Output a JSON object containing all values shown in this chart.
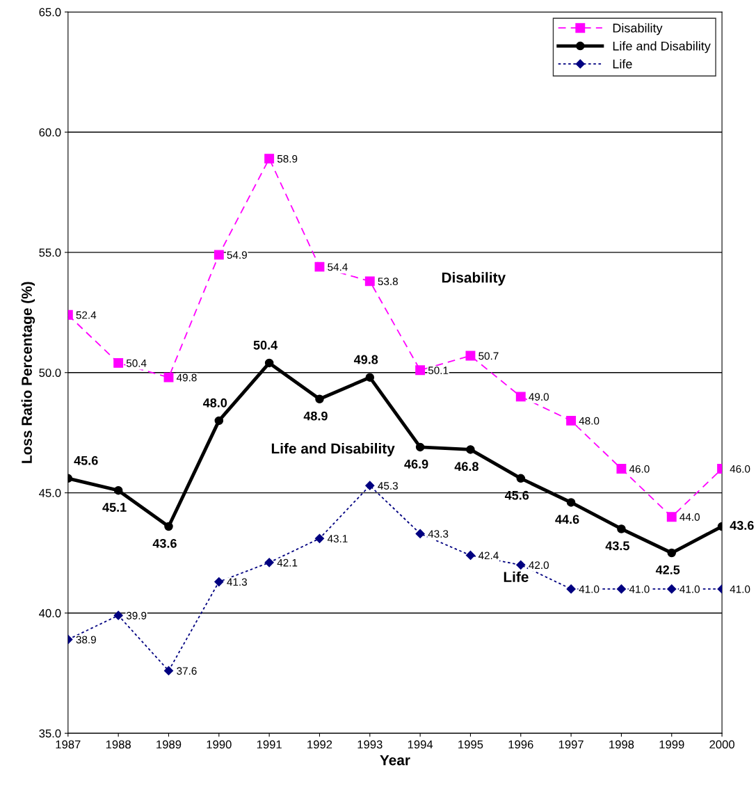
{
  "chart_data": {
    "type": "line",
    "xlabel": "Year",
    "ylabel": "Loss Ratio Percentage (%)",
    "categories": [
      "1987",
      "1988",
      "1989",
      "1990",
      "1991",
      "1992",
      "1993",
      "1994",
      "1995",
      "1996",
      "1997",
      "1998",
      "1999",
      "2000"
    ],
    "ylim": [
      35,
      65
    ],
    "yticks": [
      {
        "value": 35,
        "label": "35.0"
      },
      {
        "value": 40,
        "label": "40.0"
      },
      {
        "value": 45,
        "label": "45.0"
      },
      {
        "value": 50,
        "label": "50.0"
      },
      {
        "value": 55,
        "label": "55.0"
      },
      {
        "value": 60,
        "label": "60.0"
      },
      {
        "value": 65,
        "label": "65.0"
      }
    ],
    "grid": "y",
    "legend": "top right",
    "series": [
      {
        "name": "Disability",
        "color": "#ff00ff",
        "marker": "square",
        "line_style": "dashed",
        "values": [
          52.4,
          50.4,
          49.8,
          54.9,
          58.9,
          54.4,
          53.8,
          50.1,
          50.7,
          49.0,
          48.0,
          46.0,
          44.0,
          46.0
        ],
        "value_labels": [
          "52.4",
          "50.4",
          "49.8",
          "54.9",
          "58.9",
          "54.4",
          "53.8",
          "50.1",
          "50.7",
          "49.0",
          "48.0",
          "46.0",
          "44.0",
          "46.0"
        ]
      },
      {
        "name": "Life and Disability",
        "color": "#000000",
        "marker": "circle",
        "line_style": "solid",
        "values": [
          45.6,
          45.1,
          43.6,
          48.0,
          50.4,
          48.9,
          49.8,
          46.9,
          46.8,
          45.6,
          44.6,
          43.5,
          42.5,
          43.6
        ],
        "value_labels": [
          "45.6",
          "45.1",
          "43.6",
          "48.0",
          "50.4",
          "48.9",
          "49.8",
          "46.9",
          "46.8",
          "45.6",
          "44.6",
          "43.5",
          "42.5",
          "43.6"
        ]
      },
      {
        "name": "Life",
        "color": "#000080",
        "marker": "diamond",
        "line_style": "dotted",
        "values": [
          38.9,
          39.9,
          37.6,
          41.3,
          42.1,
          43.1,
          45.3,
          43.3,
          42.4,
          42.0,
          41.0,
          41.0,
          41.0,
          41.0
        ],
        "value_labels": [
          "38.9",
          "39.9",
          "37.6",
          "41.3",
          "42.1",
          "43.1",
          "45.3",
          "43.3",
          "42.4",
          "42.0",
          "41.0",
          "41.0",
          "41.0",
          "41.0"
        ]
      }
    ],
    "annotations": [
      "Disability",
      "Life and Disability",
      "Life"
    ]
  }
}
